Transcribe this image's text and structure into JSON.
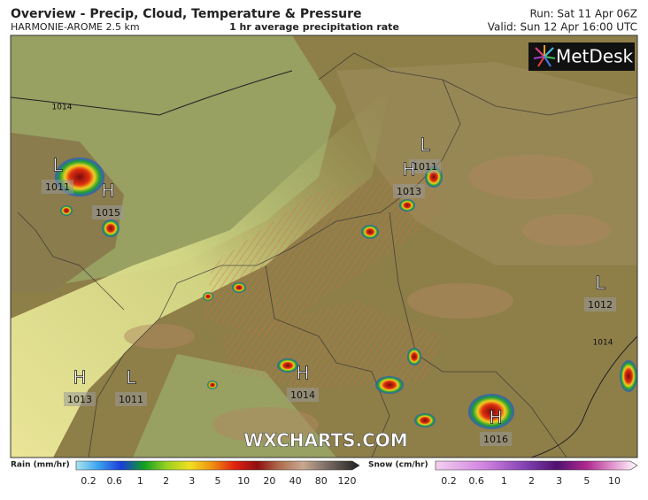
{
  "header": {
    "title": "Overview - Precip, Cloud, Temperature & Pressure",
    "model": "HARMONIE-AROME 2.5 km",
    "field": "1 hr average precipitation rate",
    "run": "Run: Sat 11 Apr 06Z",
    "valid": "Valid: Sun 12 Apr 16:00 UTC",
    "brand": "MetDesk"
  },
  "map": {
    "watermark": "WXCHARTS.COM",
    "pressure_centers": [
      {
        "kind": "L",
        "value": 1011
      },
      {
        "kind": "H",
        "value": 1015
      },
      {
        "kind": "L",
        "value": 1011
      },
      {
        "kind": "H",
        "value": 1013
      },
      {
        "kind": "L",
        "value": 1012
      },
      {
        "kind": "H",
        "value": 1013
      },
      {
        "kind": "L",
        "value": 1011
      },
      {
        "kind": "H",
        "value": 1014
      },
      {
        "kind": "H",
        "value": 1016
      }
    ],
    "isobar_labels": [
      1014,
      1014
    ]
  },
  "legend": {
    "rain": {
      "title": "Rain (mm/hr)",
      "ticks": [
        0.2,
        0.6,
        1,
        2,
        3,
        5,
        10,
        20,
        40,
        80,
        120
      ]
    },
    "snow": {
      "title": "Snow (cm/hr)",
      "ticks": [
        0.2,
        0.6,
        1,
        2,
        3,
        5,
        10
      ]
    }
  }
}
